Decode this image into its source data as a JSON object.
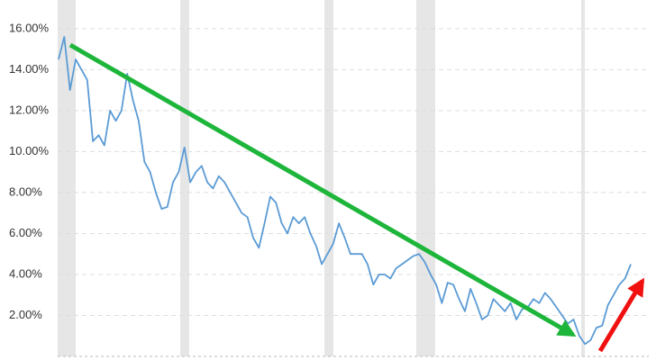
{
  "chart_data": {
    "type": "line",
    "categories": [
      null,
      null,
      null,
      null,
      null,
      null,
      null,
      null,
      null,
      null,
      null,
      null,
      null,
      null,
      null,
      null,
      null,
      null,
      null,
      null,
      null,
      null,
      null,
      null,
      null,
      null,
      null,
      null,
      null,
      null,
      null,
      null,
      null,
      null,
      null,
      null,
      null,
      null,
      null,
      null,
      null,
      null,
      null,
      null,
      null,
      null,
      null,
      null,
      null,
      null,
      null,
      null,
      null,
      null,
      null,
      null,
      null,
      null,
      null,
      null,
      null,
      null,
      null,
      null,
      null,
      null,
      null,
      null,
      null,
      null,
      null,
      null,
      null,
      null,
      null,
      null,
      null,
      null,
      null,
      null,
      null,
      null,
      null,
      null,
      null,
      null,
      null,
      null,
      null,
      null,
      null,
      null,
      null,
      null,
      null,
      null,
      null,
      null,
      null,
      null,
      null
    ],
    "values": [
      14.5,
      15.6,
      13,
      14.5,
      14,
      13.5,
      10.5,
      10.8,
      10.3,
      12,
      11.5,
      12,
      13.8,
      12.5,
      11.5,
      9.5,
      9,
      8,
      7.2,
      7.3,
      8.5,
      9,
      10.2,
      8.5,
      9,
      9.3,
      8.5,
      8.2,
      8.8,
      8.5,
      8,
      7.5,
      7,
      6.8,
      5.8,
      5.3,
      6.5,
      7.8,
      7.5,
      6.5,
      6,
      6.8,
      6.5,
      6.8,
      6,
      5.4,
      4.5,
      5,
      5.5,
      6.5,
      5.8,
      5,
      5,
      5,
      4.5,
      3.5,
      4,
      4,
      3.8,
      4.3,
      4.5,
      4.7,
      4.9,
      5,
      4.6,
      4,
      3.5,
      2.6,
      3.6,
      3.5,
      2.8,
      2.2,
      3.3,
      2.6,
      1.8,
      2,
      2.8,
      2.5,
      2.2,
      2.6,
      1.8,
      2.3,
      2.4,
      2.8,
      2.6,
      3.1,
      2.8,
      2.4,
      2,
      1.6,
      1.8,
      1,
      0.6,
      0.8,
      1.4,
      1.5,
      2.5,
      3,
      3.5,
      3.8,
      4.5
    ],
    "color": "#5b9bd5",
    "ylim": [
      0,
      17.4
    ],
    "yticks": [
      {
        "value": 2,
        "label": "2.00%"
      },
      {
        "value": 4,
        "label": "4.00%"
      },
      {
        "value": 6,
        "label": "6.00%"
      },
      {
        "value": 8,
        "label": "8.00%"
      },
      {
        "value": 10,
        "label": "10.00%"
      },
      {
        "value": 12,
        "label": "12.00%"
      },
      {
        "value": 14,
        "label": "14.00%"
      },
      {
        "value": 16,
        "label": "16.00%"
      }
    ],
    "grid": true
  }
}
